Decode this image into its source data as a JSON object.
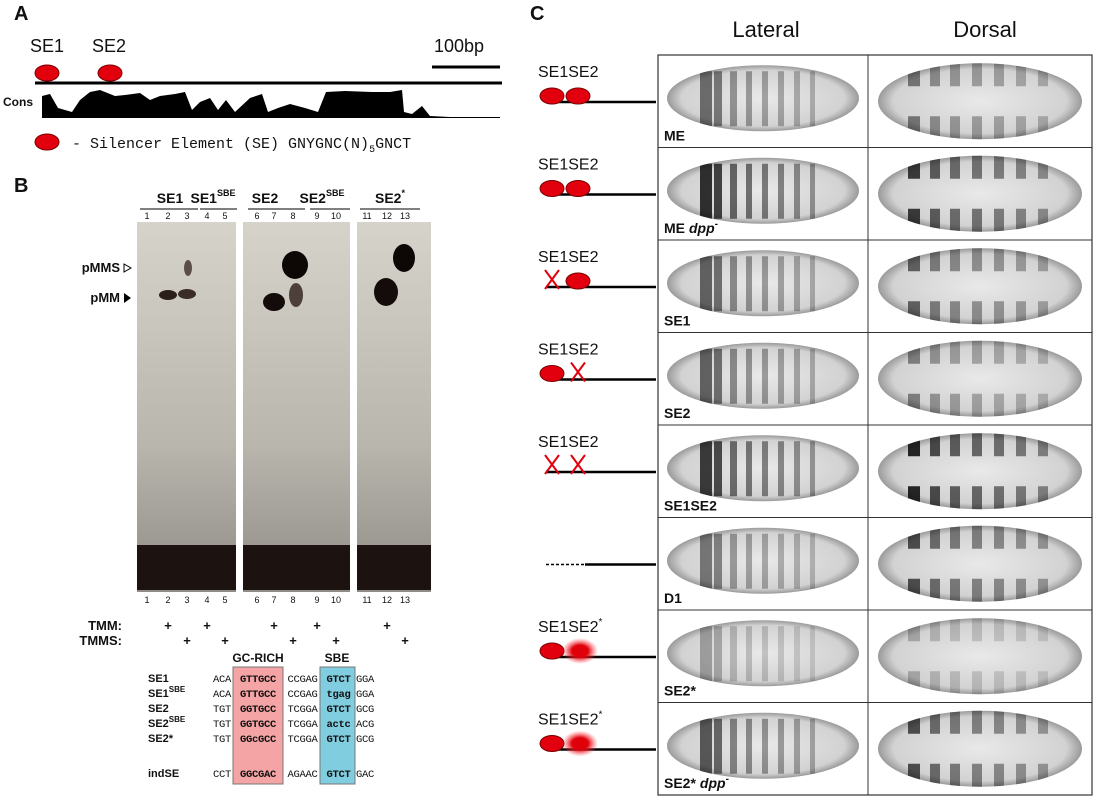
{
  "panel_a": {
    "label": "A",
    "se1": "SE1",
    "se2": "SE2",
    "scale": "100bp",
    "track": "Cons",
    "legend": {
      "text": "- Silencer Element (SE) GNYGNC(N)",
      "sub": "5",
      "tail": "GNCT"
    }
  },
  "panel_b": {
    "label": "B",
    "groups": [
      {
        "name": "SE1"
      },
      {
        "name": "SE1",
        "sup": "SBE"
      },
      {
        "name": "SE2"
      },
      {
        "name": "SE2",
        "sup": "SBE"
      },
      {
        "name": "SE2",
        "sup": "*"
      }
    ],
    "lanes": [
      1,
      2,
      3,
      4,
      5,
      6,
      7,
      8,
      9,
      10,
      11,
      12,
      13
    ],
    "bands": {
      "pmms": "pMMS",
      "pmm": "pMM"
    },
    "tmm": {
      "label": "TMM:",
      "marks": [
        "+",
        "+",
        "+",
        "+",
        "+"
      ]
    },
    "tmms": {
      "label": "TMMS:",
      "marks": [
        "+",
        "+",
        "+",
        "+",
        "+"
      ]
    },
    "seq_headers": [
      "GC-RICH",
      "SBE"
    ],
    "sequences": [
      {
        "name": "SE1",
        "parts": [
          "ACA",
          "GTTGCC",
          "CCGAG",
          "GTCT",
          "GGA"
        ]
      },
      {
        "name": "SE1",
        "sup": "SBE",
        "parts": [
          "ACA",
          "GTTGCC",
          "CCGAG",
          "tgag",
          "GGA"
        ]
      },
      {
        "name": "SE2",
        "parts": [
          "TGT",
          "GGTGCC",
          "TCGGA",
          "GTCT",
          "GCG"
        ]
      },
      {
        "name": "SE2",
        "sup": "SBE",
        "parts": [
          "TGT",
          "GGTGCC",
          "TCGGA",
          "actc",
          "ACG"
        ]
      },
      {
        "name": "SE2*",
        "parts": [
          "TGT",
          "GGcGCC",
          "TCGGA",
          "GTCT",
          "GCG"
        ]
      },
      {
        "name": "indSE",
        "parts": [
          "CCT",
          "GGCGAC",
          "AGAAC",
          "GTCT",
          "GAC"
        ]
      }
    ]
  },
  "panel_c": {
    "label": "C",
    "columns": [
      "Lateral",
      "Dorsal"
    ],
    "rows": [
      {
        "construct": "SE1SE2",
        "label": "ME"
      },
      {
        "construct": "SE1SE2",
        "label": "ME",
        "label_italic": "dpp",
        "label_sup": "-"
      },
      {
        "construct": "SE1SE2",
        "label": "SE1"
      },
      {
        "construct": "SE1SE2",
        "label": "SE2"
      },
      {
        "construct": "SE1SE2",
        "label": "SE1SE2"
      },
      {
        "label": "D1"
      },
      {
        "construct": "SE1SE2",
        "construct_sup": "*",
        "label": "SE2*"
      },
      {
        "construct": "SE1SE2",
        "construct_sup": "*",
        "label": "SE2*",
        "label_italic": "dpp",
        "label_sup": "-"
      }
    ]
  }
}
